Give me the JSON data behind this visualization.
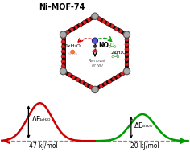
{
  "title": "Ni-MOF-74",
  "title_fontsize": 7.0,
  "title_fontweight": "bold",
  "curve1_color": "#cc0000",
  "curve2_color": "#009900",
  "bg_color": "#ffffff",
  "ni_color": "#aaaaaa",
  "ni_edge_color": "#555555",
  "o_color": "#dd2222",
  "c_color": "#111111",
  "no_atom_color": "#3333bb",
  "h2o_o_color": "#ee6622",
  "h2o_o_green_color": "#88cc44",
  "h2o_h_color": "#eeeeee",
  "red_arrow_color": "#cc0000",
  "green_arrow_color": "#009900",
  "dashed_line_color": "#888888",
  "curve1_value": "47 kJ/mol",
  "curve2_value": "20 kJ/mol"
}
